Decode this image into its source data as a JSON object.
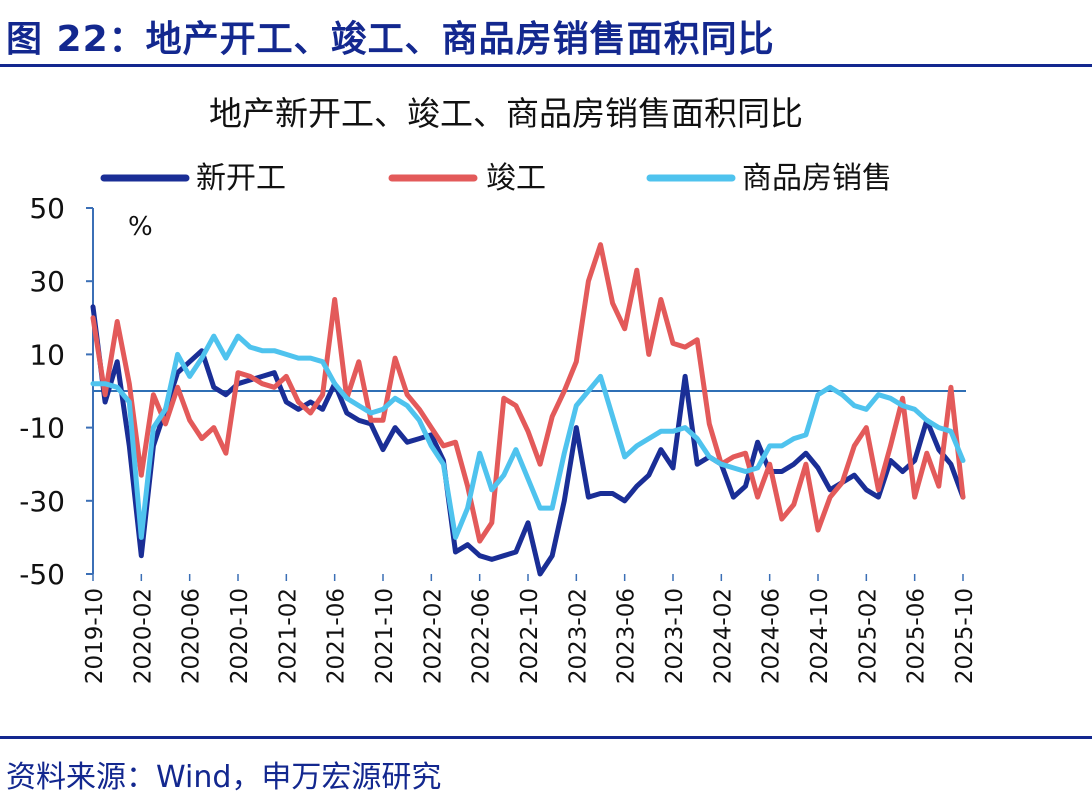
{
  "figure": {
    "title": "图 22：地产开工、竣工、商品房销售面积同比",
    "source": "资料来源：Wind，申万宏源研究"
  },
  "colors": {
    "brand": "#13288f",
    "series_new_starts": "#1a2e96",
    "series_completions": "#e35a5a",
    "series_sales": "#4fc3ee",
    "zero_line": "#2f6fb5"
  },
  "chart_data": {
    "type": "line",
    "title": "地产新开工、竣工、商品房销售面积同比",
    "ylabel": "%",
    "xlabel": "",
    "ylim": [
      -50,
      50
    ],
    "yticks": [
      50,
      30,
      10,
      -10,
      -30,
      -50
    ],
    "xticks": [
      "2019-10",
      "2020-02",
      "2020-06",
      "2020-10",
      "2021-02",
      "2021-06",
      "2021-10",
      "2022-02",
      "2022-06",
      "2022-10",
      "2023-02",
      "2023-06",
      "2023-10",
      "2024-02",
      "2024-06",
      "2024-10",
      "2025-02",
      "2025-06",
      "2025-10"
    ],
    "x": [
      "2019-10",
      "2019-11",
      "2019-12",
      "2020-01",
      "2020-02",
      "2020-03",
      "2020-04",
      "2020-05",
      "2020-06",
      "2020-07",
      "2020-08",
      "2020-09",
      "2020-10",
      "2020-11",
      "2020-12",
      "2021-01",
      "2021-02",
      "2021-03",
      "2021-04",
      "2021-05",
      "2021-06",
      "2021-07",
      "2021-08",
      "2021-09",
      "2021-10",
      "2021-11",
      "2021-12",
      "2022-01",
      "2022-02",
      "2022-03",
      "2022-04",
      "2022-05",
      "2022-06",
      "2022-07",
      "2022-08",
      "2022-09",
      "2022-10",
      "2022-11",
      "2022-12",
      "2023-01",
      "2023-02",
      "2023-03",
      "2023-04",
      "2023-05",
      "2023-06",
      "2023-07",
      "2023-08",
      "2023-09",
      "2023-10",
      "2023-11",
      "2023-12",
      "2024-01",
      "2024-02",
      "2024-03",
      "2024-04",
      "2024-05",
      "2024-06",
      "2024-07",
      "2024-08",
      "2024-09",
      "2024-10",
      "2024-11",
      "2024-12",
      "2025-01",
      "2025-02",
      "2025-03",
      "2025-04",
      "2025-05",
      "2025-06",
      "2025-07",
      "2025-08",
      "2025-09",
      "2025-10"
    ],
    "series": [
      {
        "name": "新开工",
        "values": [
          23,
          -3,
          8,
          -15,
          -45,
          -15,
          -5,
          5,
          8,
          11,
          1,
          -1,
          2,
          3,
          4,
          5,
          -3,
          -5,
          -3,
          -5,
          2,
          -6,
          -8,
          -9,
          -16,
          -10,
          -14,
          -13,
          -12,
          -19,
          -44,
          -42,
          -45,
          -46,
          -45,
          -44,
          -36,
          -50,
          -45,
          -30,
          -10,
          -29,
          -28,
          -28,
          -30,
          -26,
          -23,
          -16,
          -21,
          4,
          -20,
          -18,
          -20,
          -29,
          -26,
          -14,
          -22,
          -22,
          -20,
          -17,
          -21,
          -27,
          -25,
          -23,
          -27,
          -29,
          -19,
          -22,
          -19,
          -8,
          -16,
          -20,
          -29
        ]
      },
      {
        "name": "竣工",
        "values": [
          20,
          -1,
          19,
          2,
          -23,
          -1,
          -9,
          1,
          -8,
          -13,
          -10,
          -17,
          5,
          4,
          2,
          1,
          4,
          -3,
          -6,
          -1,
          25,
          -2,
          8,
          -8,
          -8,
          9,
          -1,
          -5,
          -10,
          -15,
          -14,
          -26,
          -41,
          -36,
          -2,
          -4,
          -11,
          -20,
          -7,
          0,
          8,
          30,
          40,
          24,
          17,
          33,
          10,
          25,
          13,
          12,
          14,
          -9,
          -20,
          -18,
          -17,
          -29,
          -20,
          -35,
          -31,
          -20,
          -38,
          -29,
          -25,
          -15,
          -10,
          -27,
          -15,
          -2,
          -29,
          -17,
          -26,
          1,
          -29
        ]
      },
      {
        "name": "商品房销售",
        "values": [
          2,
          2,
          1,
          -3,
          -40,
          -10,
          -5,
          10,
          4,
          9,
          15,
          9,
          15,
          12,
          11,
          11,
          10,
          9,
          9,
          8,
          2,
          -2,
          -4,
          -6,
          -5,
          -2,
          -4,
          -8,
          -15,
          -20,
          -40,
          -32,
          -17,
          -27,
          -23,
          -16,
          -24,
          -32,
          -32,
          -17,
          -4,
          0,
          4,
          -7,
          -18,
          -15,
          -13,
          -11,
          -11,
          -10,
          -13,
          -18,
          -20,
          -21,
          -22,
          -21,
          -15,
          -15,
          -13,
          -12,
          -1,
          1,
          -1,
          -4,
          -5,
          -1,
          -2,
          -4,
          -5,
          -8,
          -10,
          -11,
          -19
        ]
      }
    ],
    "legend_position": "top",
    "grid": false
  }
}
